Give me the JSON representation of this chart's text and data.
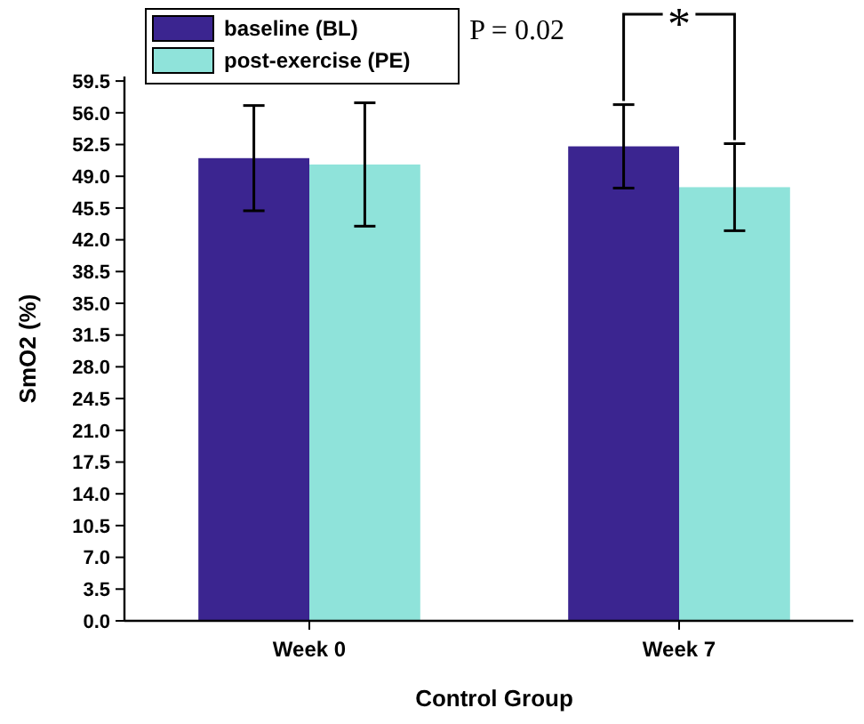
{
  "chart_data": {
    "type": "bar",
    "xlabel": "Control Group",
    "ylabel": "SmO2 (%)",
    "categories": [
      "Week 0",
      "Week 7"
    ],
    "series": [
      {
        "name": "baseline (BL)",
        "color": "#3b2590",
        "values": [
          51.0,
          52.3
        ],
        "errors": [
          5.8,
          4.6
        ]
      },
      {
        "name": "post-exercise (PE)",
        "color": "#8fe3da",
        "values": [
          50.3,
          47.8
        ],
        "errors": [
          6.8,
          4.8
        ]
      }
    ],
    "ylim": [
      0,
      60
    ],
    "yticks": [
      {
        "value": 0,
        "label": "0.0"
      },
      3.5,
      {
        "value": 7,
        "label": "7.0"
      },
      10.5,
      {
        "value": 14,
        "label": "14.0"
      },
      17.5,
      {
        "value": 21,
        "label": "21.0"
      },
      24.5,
      {
        "value": 28,
        "label": "28.0"
      },
      31.5,
      {
        "value": 35,
        "label": "35.0"
      },
      38.5,
      {
        "value": 42,
        "label": "42.0"
      },
      45.5,
      {
        "value": 49,
        "label": "49.0"
      },
      52.5,
      {
        "value": 56,
        "label": "56.0"
      },
      59.5
    ],
    "annotations": [
      "P = 0.02",
      {
        "text": "*",
        "y": 52.6
      }
    ],
    "legend": "top left",
    "grid": false
  }
}
